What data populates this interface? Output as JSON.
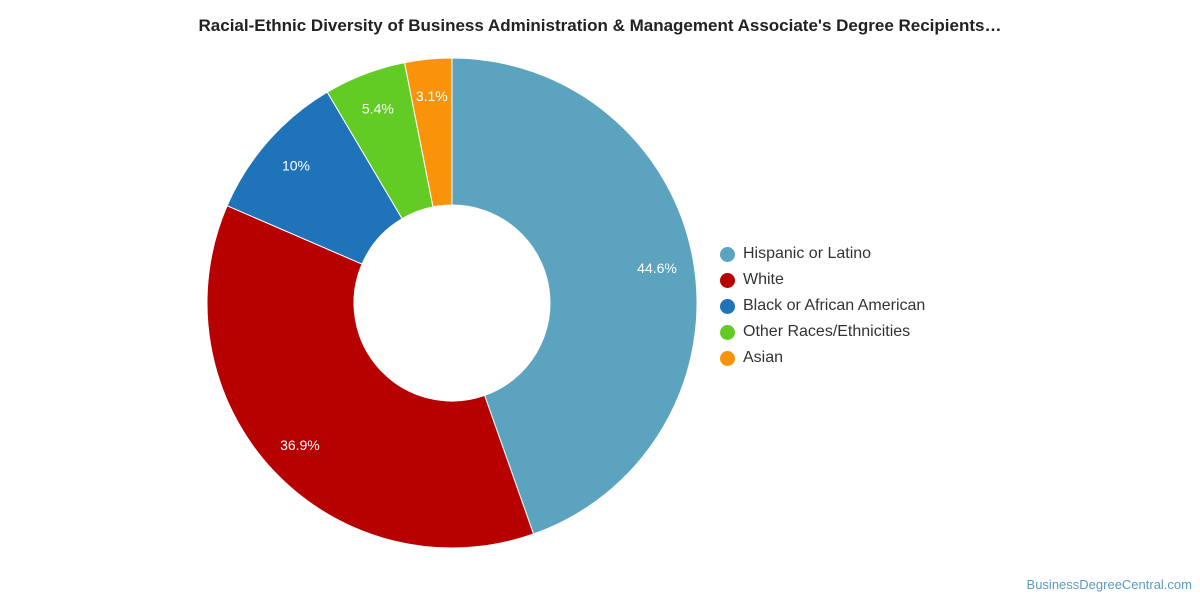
{
  "header": {
    "title": "Racial-Ethnic Diversity of Business Administration & Management Associate's Degree Recipients…"
  },
  "chart_data": {
    "type": "pie",
    "variant": "donut",
    "title": "Racial-Ethnic Diversity of Business Administration & Management Associate's Degree Recipients…",
    "legend_position": "right",
    "start_angle": "top",
    "direction": "clockwise",
    "slices": [
      {
        "name": "Hispanic or Latino",
        "value": 44.6,
        "label": "44.6%",
        "color": "#5ba3bf"
      },
      {
        "name": "White",
        "value": 36.9,
        "label": "36.9%",
        "color": "#b70000"
      },
      {
        "name": "Black or African American",
        "value": 10,
        "label": "10%",
        "color": "#1f73b9"
      },
      {
        "name": "Other Races/Ethnicities",
        "value": 5.4,
        "label": "5.4%",
        "color": "#62cc24"
      },
      {
        "name": "Asian",
        "value": 3.1,
        "label": "3.1%",
        "color": "#f9940a"
      }
    ]
  },
  "footer": {
    "credit": "BusinessDegreeCentral.com"
  }
}
